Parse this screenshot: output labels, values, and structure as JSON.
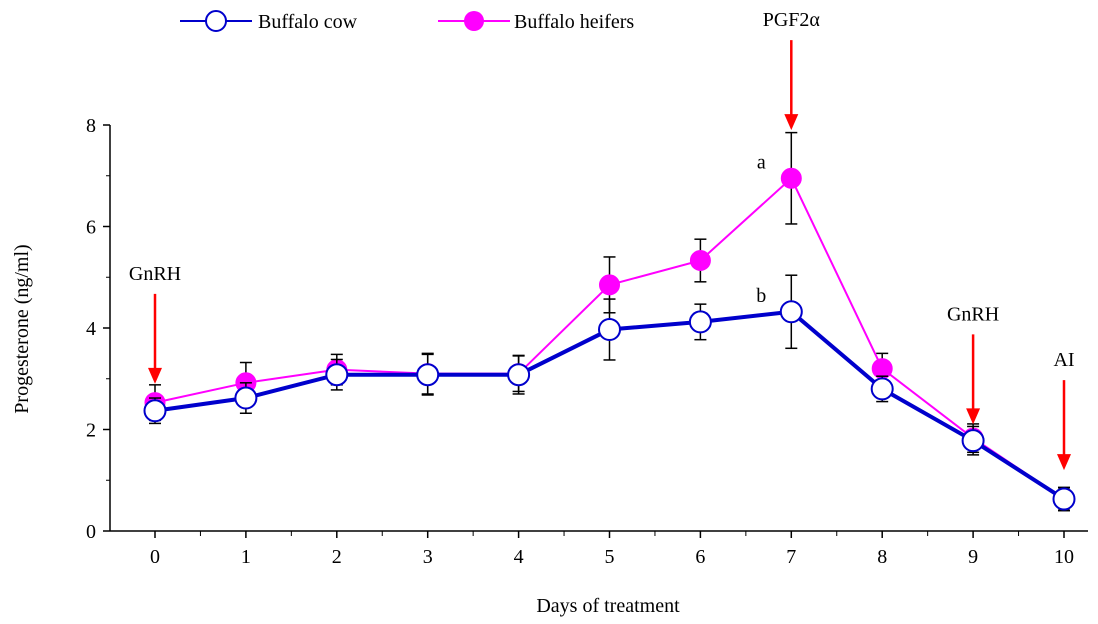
{
  "chart_data": {
    "type": "line",
    "xlabel": "Days of treatment",
    "ylabel": "Progesterone (ng/ml)",
    "x": [
      0,
      1,
      2,
      3,
      4,
      5,
      6,
      7,
      8,
      9,
      10
    ],
    "xlim": [
      0,
      10
    ],
    "ylim": [
      0,
      8
    ],
    "yticks": [
      0,
      2,
      4,
      6,
      8
    ],
    "grid": false,
    "legend_position": "top",
    "series": [
      {
        "name": "Buffalo cow",
        "color": "#0000cc",
        "marker": "open-circle",
        "values": [
          2.37,
          2.62,
          3.08,
          3.08,
          3.08,
          3.97,
          4.12,
          4.32,
          2.8,
          1.78,
          0.63
        ],
        "errors": [
          0.25,
          0.3,
          0.3,
          0.4,
          0.38,
          0.6,
          0.35,
          0.72,
          0.25,
          0.28,
          0.23
        ]
      },
      {
        "name": "Buffalo heifers",
        "color": "#ff00ff",
        "marker": "filled-circle",
        "values": [
          2.53,
          2.92,
          3.18,
          3.1,
          3.1,
          4.85,
          5.33,
          6.95,
          3.2,
          1.83,
          0.63
        ],
        "errors": [
          0.35,
          0.4,
          0.3,
          0.4,
          0.35,
          0.55,
          0.42,
          0.9,
          0.3,
          0.28,
          0.22
        ]
      }
    ],
    "annotations": [
      {
        "text": "GnRH",
        "x": 0,
        "arrow_tip_y": 2.9
      },
      {
        "text": "PGF2α",
        "x": 7,
        "arrow_tip_y": 7.9
      },
      {
        "text": "GnRH",
        "x": 9,
        "arrow_tip_y": 2.1
      },
      {
        "text": "AI",
        "x": 10,
        "arrow_tip_y": 1.2
      }
    ],
    "point_labels": [
      {
        "text": "a",
        "x": 7,
        "series": 1
      },
      {
        "text": "b",
        "x": 7,
        "series": 0
      }
    ]
  }
}
